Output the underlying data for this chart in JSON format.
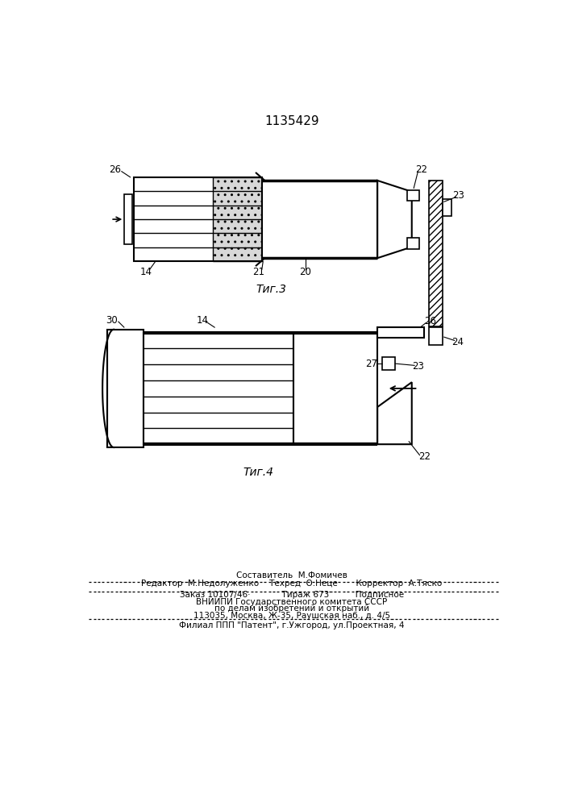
{
  "title": "1135429",
  "bg_color": "#ffffff",
  "fig3_label": "Τиг.3",
  "fig4_label": "Τиг.4",
  "footer_texts": [
    [
      "Составитель  М.Фомичев",
      353,
      228
    ],
    [
      "Редактор  М.Недолуженко    Техред  О.Неце       Корректор  А.Тяско",
      353,
      215
    ],
    [
      "Заказ 10107/46·            Тираж 673          Подписное",
      353,
      198
    ],
    [
      "ВНИИПИ Государственного комитета СССР",
      353,
      186
    ],
    [
      "по делам изобретений и открытий",
      353,
      175
    ],
    [
      "113035, Москва, Ж-35, Раушская наб., д. 4/5",
      353,
      164
    ],
    [
      "Филиал ППП \"Патент\", г.Ужгород, ул.Проектная, 4",
      353,
      148
    ]
  ]
}
